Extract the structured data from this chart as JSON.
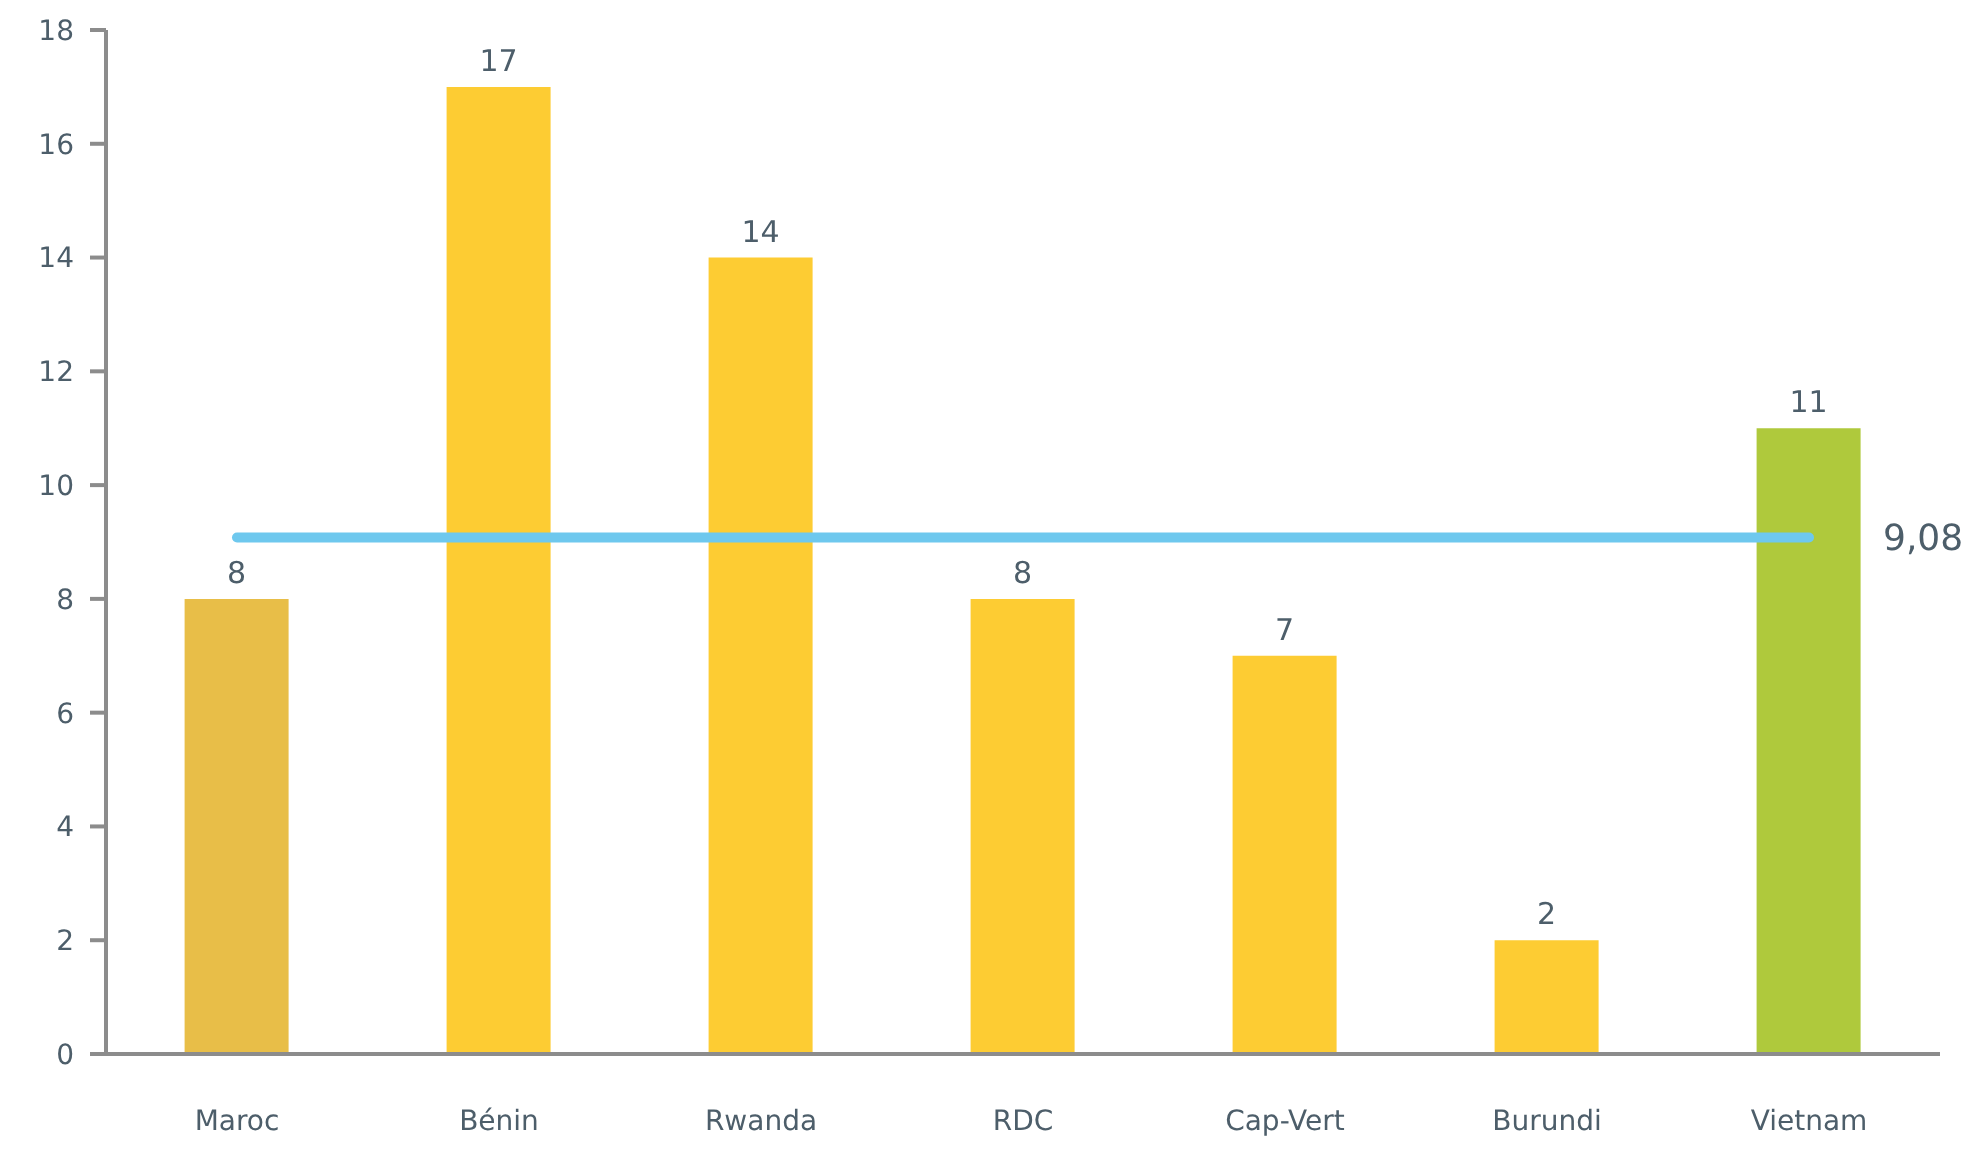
{
  "chart_data": {
    "type": "bar",
    "categories": [
      "Maroc",
      "Bénin",
      "Rwanda",
      "RDC",
      "Cap-Vert",
      "Burundi",
      "Vietnam"
    ],
    "values": [
      8,
      17,
      14,
      8,
      7,
      2,
      11
    ],
    "colors": [
      "#e8be48",
      "#fdcc33",
      "#fdcc33",
      "#fdcc33",
      "#fdcc33",
      "#fdcc33",
      "#afc93c"
    ],
    "ylim": [
      0,
      18
    ],
    "yticks": [
      0,
      2,
      4,
      6,
      8,
      10,
      12,
      14,
      16,
      18
    ],
    "data_labels": true,
    "ref_lines": [
      {
        "axis": "y",
        "value": 9.08,
        "label": "9,08",
        "color": "#6ec8ee"
      }
    ]
  }
}
